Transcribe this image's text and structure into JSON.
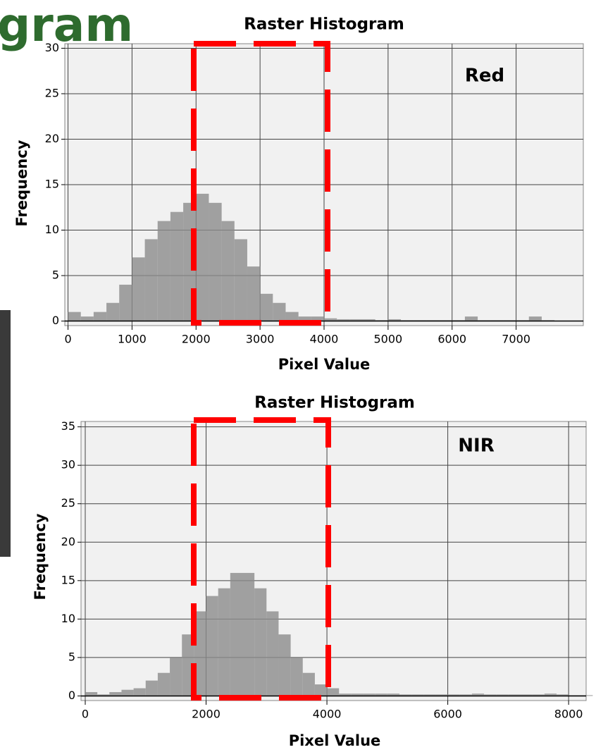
{
  "background_title": "gram",
  "chart_data": [
    {
      "type": "histogram",
      "title": "Raster Histogram",
      "x_label": "Pixel Value",
      "y_label": "Frequency",
      "annotation": "Red",
      "bins": [
        0,
        200,
        400,
        600,
        800,
        1000,
        1200,
        1400,
        1600,
        1800,
        2000,
        2200,
        2400,
        2600,
        2800,
        3000,
        3200,
        3400,
        3600,
        3800,
        4000,
        4200,
        4400,
        4600,
        4800,
        5000,
        5200,
        5400,
        5600,
        5800,
        6000,
        6200,
        6400,
        6600,
        6800,
        7000,
        7200,
        7400,
        7600,
        7800,
        8000
      ],
      "values": [
        1,
        0.5,
        1,
        2,
        4,
        7,
        9,
        11,
        12,
        13,
        14,
        13,
        11,
        9,
        6,
        3,
        2,
        1,
        0.5,
        0.5,
        0.3,
        0.2,
        0.2,
        0.2,
        0.1,
        0.2,
        0.1,
        0.1,
        0.1,
        0.1,
        0.1,
        0.5,
        0.1,
        0.1,
        0.1,
        0.1,
        0.5,
        0.1,
        0,
        0
      ],
      "color": "#8c8c8c",
      "xlim": [
        -50,
        8050
      ],
      "ylim": [
        -0.5,
        30.5
      ],
      "xticks": [
        0,
        1000,
        2000,
        3000,
        4000,
        5000,
        6000,
        7000
      ],
      "yticks": [
        0,
        5,
        10,
        15,
        20,
        25,
        30
      ],
      "grid": true
    },
    {
      "type": "histogram",
      "title": "Raster Histogram",
      "x_label": "Pixel Value",
      "y_label": "Frequency",
      "annotation": "NIR",
      "bins": [
        0,
        200,
        400,
        600,
        800,
        1000,
        1200,
        1400,
        1600,
        1800,
        2000,
        2200,
        2400,
        2600,
        2800,
        3000,
        3200,
        3400,
        3600,
        3800,
        4000,
        4200,
        4400,
        4600,
        4800,
        5000,
        5200,
        5400,
        5600,
        5800,
        6000,
        6200,
        6400,
        6600,
        6800,
        7000,
        7200,
        7400,
        7600,
        7800,
        8000,
        8200,
        8400
      ],
      "values": [
        0.5,
        0.2,
        0.5,
        0.8,
        1,
        2,
        3,
        5,
        8,
        11,
        13,
        14,
        16,
        16,
        14,
        11,
        8,
        5,
        3,
        1.5,
        1,
        0.3,
        0.3,
        0.3,
        0.3,
        0.3,
        0.2,
        0.2,
        0.2,
        0.2,
        0.2,
        0.2,
        0.3,
        0.2,
        0.2,
        0.2,
        0.2,
        0.2,
        0.3,
        0.2,
        0.1,
        0.1
      ],
      "color": "#8c8c8c",
      "xlim": [
        -70,
        8290
      ],
      "ylim": [
        -0.6,
        35.7
      ],
      "xticks": [
        0,
        2000,
        4000,
        6000,
        8000
      ],
      "yticks": [
        0,
        5,
        10,
        15,
        20,
        25,
        30,
        35
      ],
      "grid": true
    }
  ]
}
